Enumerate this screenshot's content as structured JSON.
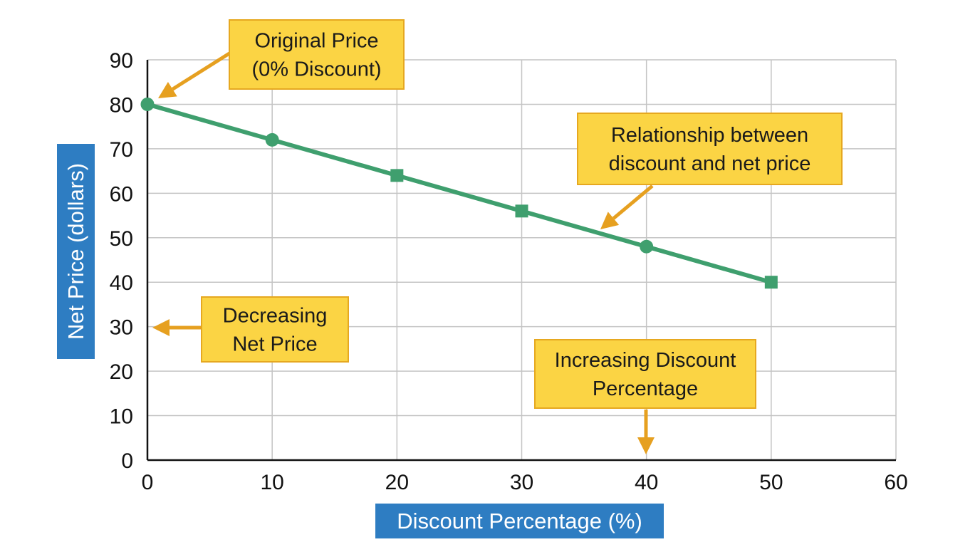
{
  "chart_data": {
    "type": "line",
    "xlabel": "Discount Percentage (%)",
    "ylabel": "Net Price (dollars)",
    "xlim": [
      0,
      60
    ],
    "ylim": [
      0,
      90
    ],
    "x_ticks": [
      0,
      10,
      20,
      30,
      40,
      50,
      60
    ],
    "y_ticks": [
      0,
      10,
      20,
      30,
      40,
      50,
      60,
      70,
      80,
      90
    ],
    "grid": true,
    "series": [
      {
        "color": "#3f9f6e",
        "points": [
          {
            "x": 0,
            "y": 80,
            "marker": "circle"
          },
          {
            "x": 10,
            "y": 72,
            "marker": "circle"
          },
          {
            "x": 20,
            "y": 64,
            "marker": "square"
          },
          {
            "x": 30,
            "y": 56,
            "marker": "square"
          },
          {
            "x": 40,
            "y": 48,
            "marker": "circle"
          },
          {
            "x": 50,
            "y": 40,
            "marker": "square"
          }
        ]
      }
    ],
    "annotations": [
      {
        "id": "original-price",
        "lines": [
          "Original Price",
          "(0% Discount)"
        ],
        "points_to": {
          "x": 0,
          "y": 80
        }
      },
      {
        "id": "relationship",
        "lines": [
          "Relationship between",
          "discount and net price"
        ],
        "points_to": {
          "x": 36,
          "y": 52
        }
      },
      {
        "id": "decreasing",
        "lines": [
          "Decreasing",
          "Net Price"
        ],
        "points_to": {
          "x": 0,
          "y": 30
        }
      },
      {
        "id": "increasing",
        "lines": [
          "Increasing Discount",
          "Percentage"
        ],
        "points_to": {
          "x": 40,
          "y": 0
        }
      }
    ]
  },
  "colors": {
    "line": "#3f9f6e",
    "grid": "#c4c4c4",
    "axis": "#111111",
    "annotation_fill": "#fbd444",
    "annotation_border": "#e6a820",
    "arrow": "#e6a020",
    "axis_title_bg": "#2e7dc2"
  }
}
